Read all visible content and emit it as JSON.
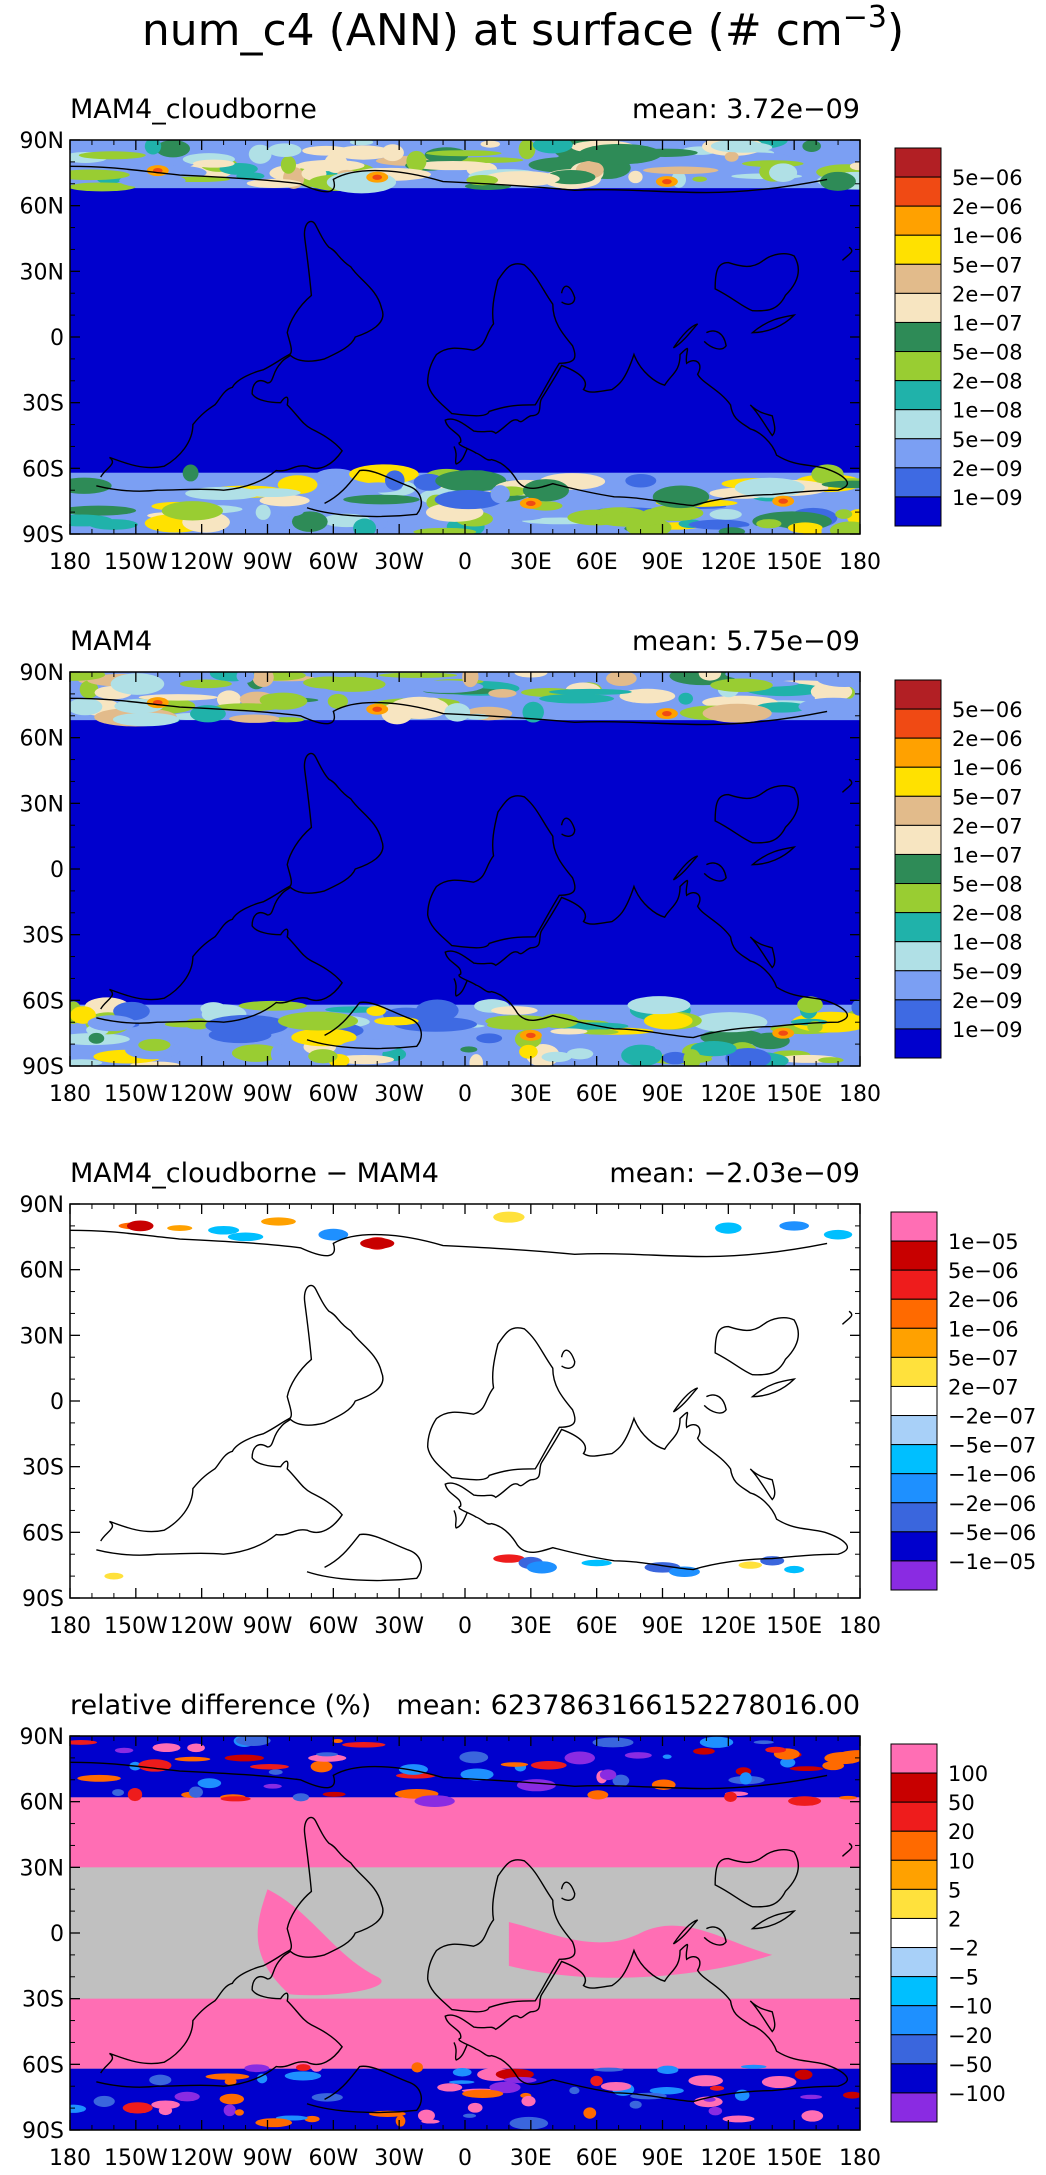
{
  "figure": {
    "title_main": "num_c4 (ANN) at surface (# cm",
    "title_exp": "−3",
    "title_close": ")"
  },
  "lat_ticks": [
    "90N",
    "60N",
    "30N",
    "0",
    "30S",
    "60S",
    "90S"
  ],
  "lon_ticks": [
    "180",
    "150W",
    "120W",
    "90W",
    "60W",
    "30W",
    "0",
    "30E",
    "60E",
    "90E",
    "120E",
    "150E",
    "180"
  ],
  "panels": [
    {
      "id": "cloudborne",
      "left_title": "MAM4_cloudborne",
      "right_title": "mean: 3.72e−09",
      "field": "absolute",
      "colorbar": {
        "colors": [
          "#b21f24",
          "#f04a14",
          "#ffa100",
          "#ffe100",
          "#e2bb8b",
          "#f7e5c1",
          "#2e8b57",
          "#99cd32",
          "#20b2aa",
          "#b0e0e6",
          "#7b9ff3",
          "#3e6ae3",
          "#0000cd"
        ],
        "labels": [
          "5e−06",
          "2e−06",
          "1e−06",
          "5e−07",
          "2e−07",
          "1e−07",
          "5e−08",
          "2e−08",
          "1e−08",
          "5e−09",
          "2e−09",
          "1e−09"
        ]
      }
    },
    {
      "id": "mam4",
      "left_title": "MAM4",
      "right_title": "mean: 5.75e−09",
      "field": "absolute",
      "colorbar": {
        "colors": [
          "#b21f24",
          "#f04a14",
          "#ffa100",
          "#ffe100",
          "#e2bb8b",
          "#f7e5c1",
          "#2e8b57",
          "#99cd32",
          "#20b2aa",
          "#b0e0e6",
          "#7b9ff3",
          "#3e6ae3",
          "#0000cd"
        ],
        "labels": [
          "5e−06",
          "2e−06",
          "1e−06",
          "5e−07",
          "2e−07",
          "1e−07",
          "5e−08",
          "2e−08",
          "1e−08",
          "5e−09",
          "2e−09",
          "1e−09"
        ]
      }
    },
    {
      "id": "difference",
      "left_title": "MAM4_cloudborne − MAM4",
      "right_title": "mean: −2.03e−09",
      "field": "difference",
      "colorbar": {
        "colors": [
          "#ff6eb4",
          "#c80000",
          "#ee1c1c",
          "#ff6a00",
          "#ffa100",
          "#ffe13c",
          "#ffffff",
          "#a8d0f8",
          "#00bfff",
          "#1e90ff",
          "#3a66dd",
          "#0000cd",
          "#8a2be2"
        ],
        "labels": [
          "1e−05",
          "5e−06",
          "2e−06",
          "1e−06",
          "5e−07",
          "2e−07",
          "−2e−07",
          "−5e−07",
          "−1e−06",
          "−2e−06",
          "−5e−06",
          "−1e−05"
        ]
      }
    },
    {
      "id": "relative",
      "left_title": "relative difference (%)",
      "right_title": "mean: 6237863166152278016.00",
      "field": "relative",
      "colorbar": {
        "colors": [
          "#ff6eb4",
          "#c80000",
          "#ee1c1c",
          "#ff6a00",
          "#ffa100",
          "#ffe13c",
          "#ffffff",
          "#a8d0f8",
          "#00bfff",
          "#1e90ff",
          "#3a66dd",
          "#0000cd",
          "#8a2be2"
        ],
        "labels": [
          "100",
          "50",
          "20",
          "10",
          "5",
          "2",
          "−2",
          "−5",
          "−10",
          "−20",
          "−50",
          "−100"
        ]
      }
    }
  ]
}
